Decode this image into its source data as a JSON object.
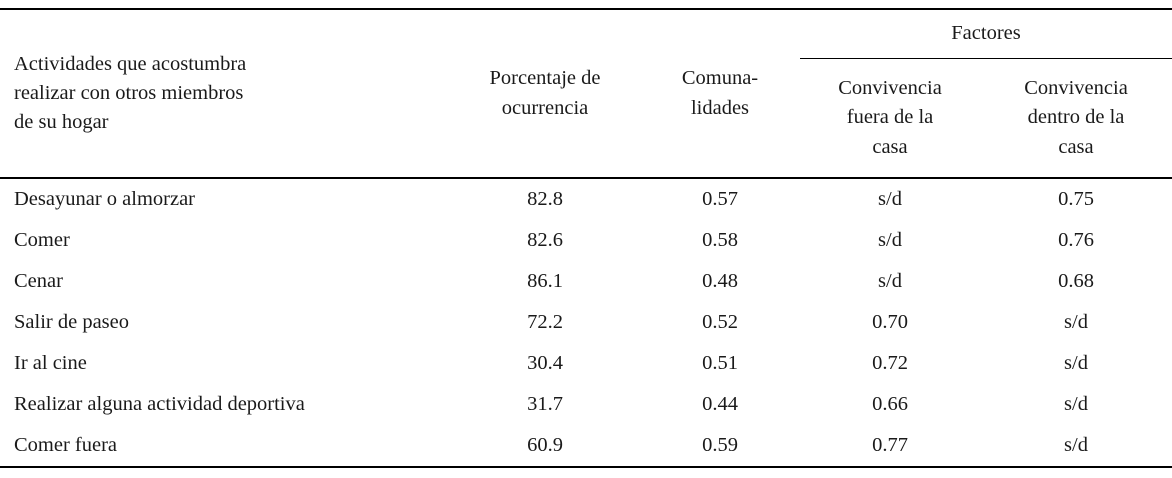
{
  "table": {
    "header": {
      "activity": "Actividades que acostumbra\nrealizar con otros miembros\nde su hogar",
      "occurrence": "Porcentaje de\nocurrencia",
      "communalities": "Comuna-\nlidades",
      "factors_group": "Factores",
      "factor_outside": "Convivencia\nfuera de la\ncasa",
      "factor_inside": "Convivencia\ndentro de la\ncasa"
    },
    "rows": [
      {
        "activity": "Desayunar o almorzar",
        "occurrence": "82.8",
        "communalities": "0.57",
        "factor_outside": "s/d",
        "factor_inside": "0.75"
      },
      {
        "activity": "Comer",
        "occurrence": "82.6",
        "communalities": "0.58",
        "factor_outside": "s/d",
        "factor_inside": "0.76"
      },
      {
        "activity": "Cenar",
        "occurrence": "86.1",
        "communalities": "0.48",
        "factor_outside": "s/d",
        "factor_inside": "0.68"
      },
      {
        "activity": "Salir de paseo",
        "occurrence": "72.2",
        "communalities": "0.52",
        "factor_outside": "0.70",
        "factor_inside": "s/d"
      },
      {
        "activity": "Ir al cine",
        "occurrence": "30.4",
        "communalities": "0.51",
        "factor_outside": "0.72",
        "factor_inside": "s/d"
      },
      {
        "activity": "Realizar alguna actividad deportiva",
        "occurrence": "31.7",
        "communalities": "0.44",
        "factor_outside": "0.66",
        "factor_inside": "s/d"
      },
      {
        "activity": "Comer fuera",
        "occurrence": "60.9",
        "communalities": "0.59",
        "factor_outside": "0.77",
        "factor_inside": "s/d"
      }
    ],
    "colors": {
      "text": "#1a1a1a",
      "rule": "#000000",
      "background": "#ffffff"
    }
  }
}
